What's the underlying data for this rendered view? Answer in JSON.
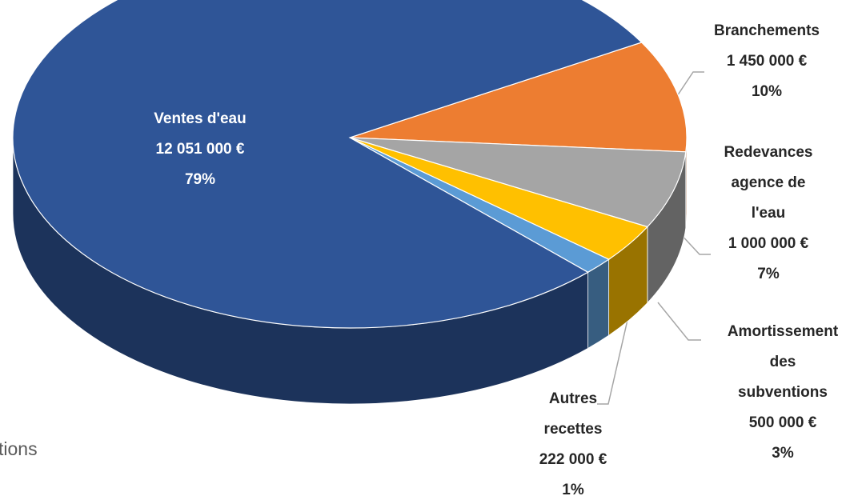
{
  "chart_data": {
    "type": "pie",
    "categories": [
      "Ventes d'eau",
      "Branchements",
      "Redevances agence de l'eau",
      "Amortissement des subventions",
      "Autres recettes"
    ],
    "values": [
      12051000,
      1450000,
      1000000,
      500000,
      222000
    ],
    "value_labels": [
      "12 051 000 €",
      "1 450 000 €",
      "1 000 000 €",
      "500 000 €",
      "222 000 €"
    ],
    "percentages": [
      79,
      10,
      7,
      3,
      1
    ],
    "percentage_labels": [
      "79%",
      "10%",
      "7%",
      "3%",
      "1%"
    ],
    "colors": [
      "#2f5597",
      "#ed7d31",
      "#a5a5a5",
      "#ffc000",
      "#5b9bd5"
    ],
    "legend_fragment": "tions"
  }
}
